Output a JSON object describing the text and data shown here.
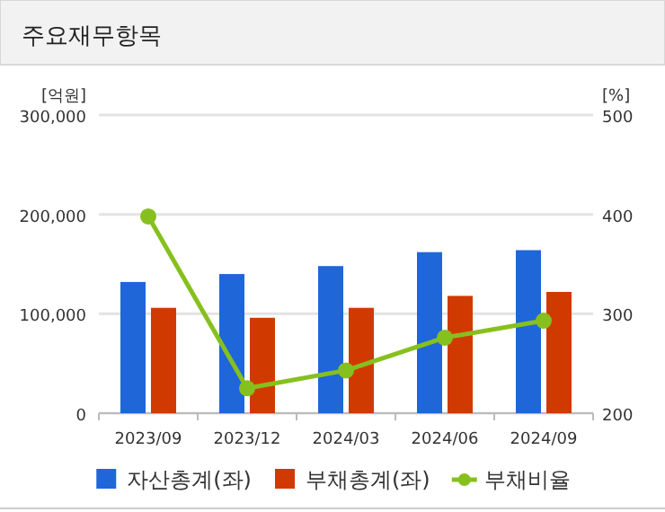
{
  "chart_data": {
    "type": "bar",
    "title": "주요재무항목",
    "ylabel": "[억원]",
    "y2label": "[%]",
    "categories": [
      "2023/09",
      "2023/12",
      "2024/03",
      "2024/06",
      "2024/09"
    ],
    "series": [
      {
        "name": "자산총계(좌)",
        "color": "#1f66d9",
        "values": [
          132000,
          140000,
          148000,
          162000,
          164000
        ]
      },
      {
        "name": "부채총계(좌)",
        "color": "#d03a00",
        "values": [
          106000,
          96000,
          106000,
          118000,
          122000
        ]
      },
      {
        "name": "부채비율",
        "type": "line",
        "axis": "y2",
        "color": "#86c01e",
        "marker": "circle",
        "values": [
          398,
          225,
          243,
          276,
          293
        ]
      }
    ],
    "ylim": [
      0,
      300000
    ],
    "yticks": [
      {
        "value": 0,
        "label": "0"
      },
      {
        "value": 100000,
        "label": "100,000"
      },
      {
        "value": 200000,
        "label": "200,000"
      },
      {
        "value": 300000,
        "label": "300,000"
      }
    ],
    "y2lim": [
      200,
      500
    ],
    "y2ticks": [
      200,
      300,
      400,
      500
    ],
    "grid": "y",
    "legend": "bottom"
  }
}
